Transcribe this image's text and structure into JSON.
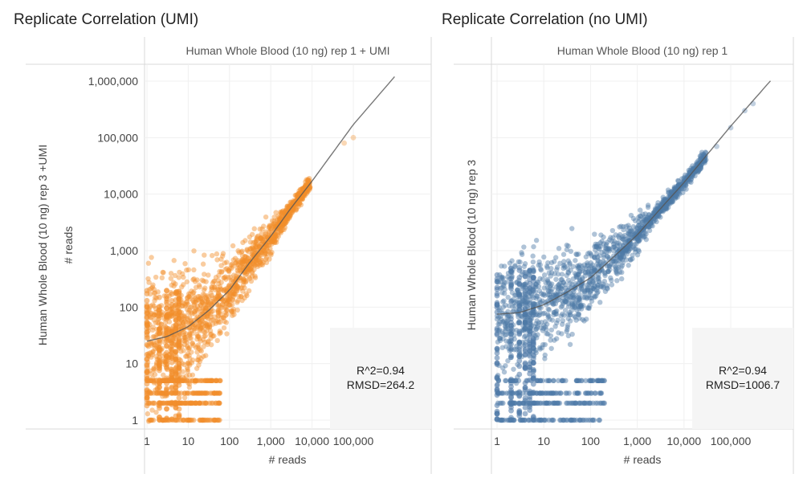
{
  "titles": {
    "left": "Replicate Correlation (UMI)",
    "right": "Replicate Correlation (no UMI)"
  },
  "chart_data": [
    {
      "type": "scatter",
      "title": "Replicate Correlation (UMI)",
      "panel_label": "Human Whole Blood (10 ng) rep 1 + UMI",
      "xlabel": "# reads",
      "ylabel": "Human Whole Blood (10 ng) rep 3 +UMI",
      "ylabel2": "# reads",
      "x_scale": "log10",
      "y_scale": "log10",
      "x_ticks": [
        1,
        10,
        100,
        1000,
        10000,
        100000
      ],
      "x_tick_labels": [
        "1",
        "10",
        "100",
        "1,000",
        "10,000",
        "100,000"
      ],
      "y_ticks": [
        1,
        10,
        100,
        1000,
        10000,
        100000,
        1000000
      ],
      "y_tick_labels": [
        "1",
        "10",
        "100",
        "1,000",
        "10,000",
        "100,000",
        "1,000,000"
      ],
      "color": "#f28e2b",
      "annotation": [
        "R^2=0.94",
        "RMSD=264.2"
      ],
      "trend_line": {
        "x": [
          1,
          3,
          10,
          30,
          100,
          300,
          1000,
          3000,
          10000,
          100000,
          1000000
        ],
        "y": [
          25,
          30,
          45,
          85,
          200,
          600,
          1800,
          5500,
          17000,
          170000,
          1200000
        ]
      },
      "extra_points": [
        [
          60000,
          80000
        ],
        [
          100000,
          100000
        ],
        [
          8000,
          15000
        ],
        [
          5000,
          9000
        ]
      ]
    },
    {
      "type": "scatter",
      "title": "Replicate Correlation (no UMI)",
      "panel_label": "Human Whole Blood (10 ng) rep 1",
      "xlabel": "# reads",
      "ylabel": "Human Whole Blood (10 ng) rep 3",
      "x_scale": "log10",
      "y_scale": "log10",
      "x_ticks": [
        1,
        10,
        100,
        1000,
        10000,
        100000
      ],
      "x_tick_labels": [
        "1",
        "10",
        "100",
        "1,000",
        "10,000",
        "100,000"
      ],
      "y_ticks": [
        1,
        10,
        100,
        1000,
        10000,
        100000,
        1000000
      ],
      "y_tick_labels": [],
      "color": "#4e79a7",
      "annotation": [
        "R^2=0.94",
        "RMSD=1006.7"
      ],
      "trend_line": {
        "x": [
          1,
          3,
          10,
          30,
          100,
          300,
          1000,
          3000,
          10000,
          100000,
          1000000
        ],
        "y": [
          75,
          80,
          110,
          180,
          330,
          750,
          1900,
          5300,
          16000,
          160000,
          1400000
        ]
      },
      "extra_points": [
        [
          300000,
          400000
        ],
        [
          200000,
          300000
        ],
        [
          100000,
          150000
        ],
        [
          50000,
          70000
        ]
      ]
    }
  ]
}
